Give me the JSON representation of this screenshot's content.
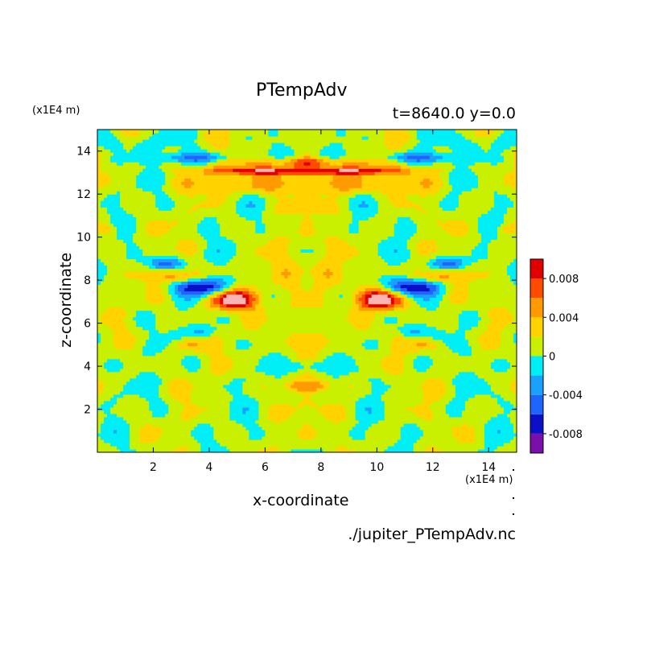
{
  "chart_data": {
    "type": "heatmap",
    "title": "PTempAdv",
    "subtitle": "t=8640.0 y=0.0",
    "xlabel": "x-coordinate",
    "ylabel": "z-coordinate",
    "x_unit": "(x1E4 m)",
    "y_unit": "(x1E4 m)",
    "xlim": [
      0,
      15
    ],
    "ylim": [
      0,
      15
    ],
    "x_ticks": [
      2,
      4,
      6,
      8,
      10,
      12,
      14
    ],
    "y_ticks": [
      2,
      4,
      6,
      8,
      10,
      12,
      14
    ],
    "colorbar": {
      "levels": [
        -0.01,
        -0.008,
        -0.006,
        -0.004,
        -0.002,
        0,
        0.002,
        0.004,
        0.006,
        0.008,
        0.01
      ],
      "colors": [
        "#7a0faa",
        "#0a10c8",
        "#1e64ff",
        "#1aa0ff",
        "#00eef5",
        "#c8f000",
        "#ffd200",
        "#ff9a00",
        "#ff4a00",
        "#e00000",
        "#ffb4b4"
      ],
      "tick_values": [
        -0.008,
        -0.004,
        0,
        0.004,
        0.008
      ],
      "tick_labels": [
        "-0.008",
        "-0.004",
        "0",
        "0.004",
        "0.008"
      ]
    },
    "grid": false,
    "symmetry": "mirror about x=7.5"
  },
  "footer": {
    "filename": "./jupiter_PTempAdv.nc"
  }
}
